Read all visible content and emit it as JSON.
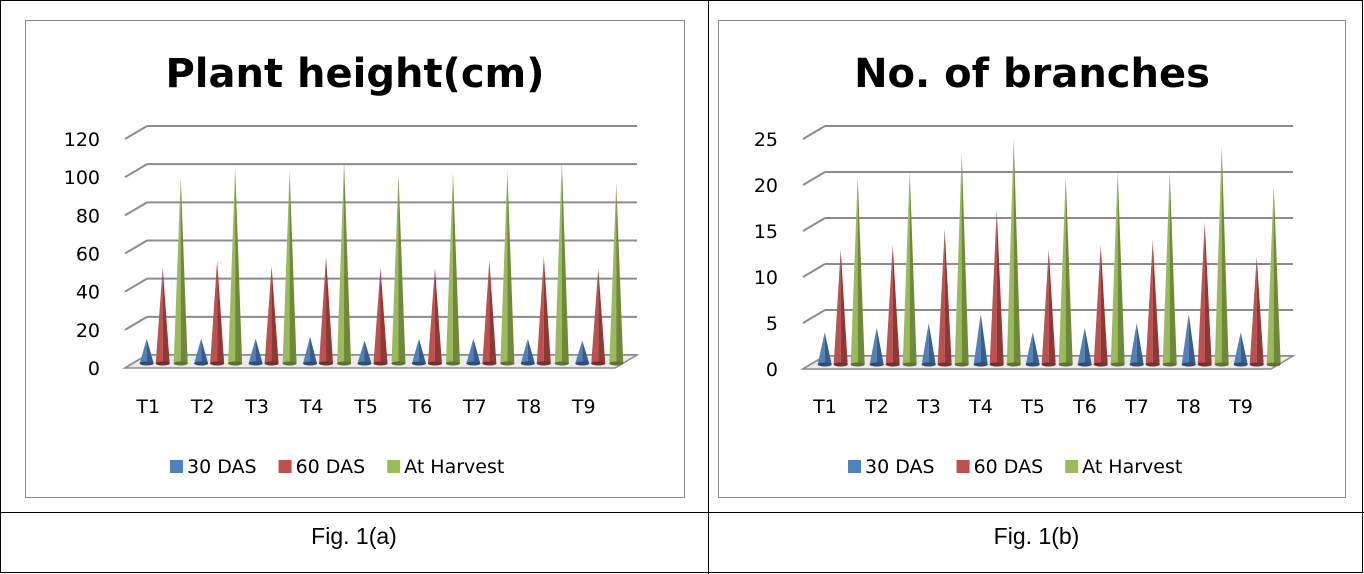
{
  "colors": {
    "30 DAS": "#4f81bd",
    "60 DAS": "#c0504d",
    "At Harvest": "#9bbb59",
    "grid": "#8c8c8c",
    "text": "#000000"
  },
  "chart_data": [
    {
      "type": "bar",
      "variant": "3d-cone",
      "title": "Plant height(cm)",
      "caption": "Fig. 1(a)",
      "categories": [
        "T1",
        "T2",
        "T3",
        "T4",
        "T5",
        "T6",
        "T7",
        "T8",
        "T9"
      ],
      "series": [
        {
          "name": "30 DAS",
          "values": [
            13,
            13,
            13,
            14,
            12,
            13,
            13,
            13,
            12
          ]
        },
        {
          "name": "60 DAS",
          "values": [
            50,
            54,
            51,
            56,
            50,
            50,
            54,
            56,
            50
          ]
        },
        {
          "name": "At Harvest",
          "values": [
            98,
            103,
            101,
            106,
            99,
            100,
            101,
            106,
            95
          ]
        }
      ],
      "yticks": [
        "0",
        "20",
        "40",
        "60",
        "80",
        "100",
        "120"
      ],
      "ylim": [
        0,
        120
      ],
      "legend": "bottom",
      "grid": true
    },
    {
      "type": "bar",
      "variant": "3d-cone",
      "title": "No. of branches",
      "caption": "Fig. 1(b)",
      "categories": [
        "T1",
        "T2",
        "T3",
        "T4",
        "T5",
        "T6",
        "T7",
        "T8",
        "T9"
      ],
      "series": [
        {
          "name": "30 DAS",
          "values": [
            3.5,
            4,
            4.5,
            5.5,
            3.5,
            4,
            4.5,
            5.5,
            3.5
          ]
        },
        {
          "name": "60 DAS",
          "values": [
            12.5,
            13,
            14.7,
            16.8,
            12.5,
            13,
            13.5,
            15.5,
            11.7
          ]
        },
        {
          "name": "At Harvest",
          "values": [
            20.5,
            21,
            23,
            24.5,
            20.5,
            21,
            21,
            23.8,
            19.5
          ]
        }
      ],
      "yticks": [
        "0",
        "5",
        "10",
        "15",
        "20",
        "25"
      ],
      "ylim": [
        0,
        25
      ],
      "legend": "bottom",
      "grid": true
    }
  ]
}
